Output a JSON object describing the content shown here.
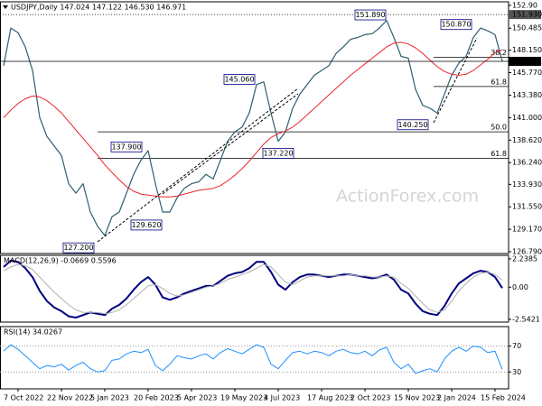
{
  "chart_data": [
    {
      "type": "line",
      "title": "USDJPY,Daily  147.024 147.122 146.530 146.971",
      "watermark": "ActionForex.com",
      "categories": [
        null,
        null,
        "7 Oct 2022",
        null,
        null,
        null,
        null,
        null,
        "22 Nov 2022",
        null,
        null,
        null,
        null,
        null,
        "5 Jan 2023",
        null,
        null,
        null,
        null,
        null,
        "20 Feb 2023",
        null,
        null,
        null,
        null,
        null,
        "5 Apr 2023",
        null,
        null,
        null,
        null,
        null,
        "19 May 2023",
        null,
        null,
        null,
        null,
        null,
        "4 Jul 2023",
        null,
        null,
        null,
        null,
        null,
        "17 Aug 2023",
        null,
        null,
        null,
        null,
        null,
        "2 Oct 2023",
        null,
        null,
        null,
        null,
        null,
        "15 Nov 2023",
        null,
        null,
        null,
        null,
        null,
        "2 Jan 2024",
        null,
        null,
        null,
        null,
        null,
        "15 Feb 2024",
        null
      ],
      "series": [
        {
          "color": "#2f5f6f",
          "values": [
            146.5,
            150.5,
            150,
            148.5,
            146,
            141,
            139,
            138,
            137,
            134,
            133,
            134,
            131,
            129.5,
            128.5,
            130.5,
            131,
            133,
            135,
            136.5,
            137.5,
            134,
            131,
            131,
            132.5,
            133.5,
            134,
            134.2,
            135,
            134.5,
            136.5,
            138.5,
            139.5,
            140,
            141.5,
            144.5,
            144.8,
            141.5,
            138.5,
            139.5,
            142,
            143.5,
            144.5,
            145.5,
            146,
            146.5,
            147.8,
            148.5,
            149.3,
            149.5,
            149.8,
            149.9,
            150.5,
            151.3,
            149.5,
            147.5,
            147.3,
            144,
            142.3,
            142,
            141.5,
            143.5,
            145.5,
            146.8,
            147.5,
            149.5,
            150.5,
            150.2,
            149.8,
            147
          ]
        },
        {
          "color": "#e8262a",
          "values": [
            141,
            141.8,
            142.5,
            143,
            143.3,
            143.2,
            142.8,
            142.2,
            141.5,
            140.6,
            139.7,
            138.8,
            137.9,
            137,
            136,
            135.2,
            134.4,
            133.7,
            133.2,
            132.9,
            132.8,
            132.7,
            132.6,
            132.6,
            132.7,
            132.9,
            133.1,
            133.3,
            133.4,
            133.5,
            133.8,
            134.3,
            134.9,
            135.6,
            136.4,
            137.3,
            138.2,
            138.9,
            139.3,
            139.6,
            140,
            140.6,
            141.3,
            142,
            142.7,
            143.4,
            144.1,
            144.8,
            145.5,
            146.1,
            146.7,
            147.3,
            147.9,
            148.5,
            148.9,
            149,
            148.8,
            148.4,
            147.8,
            147.1,
            146.4,
            145.9,
            145.6,
            145.5,
            145.6,
            146,
            146.6,
            147.2,
            147.9,
            148.2
          ]
        }
      ],
      "ylim": [
        126.6,
        153.28
      ],
      "yticks": [
        {
          "value": 152.9,
          "label": "152.90"
        },
        150.485,
        {
          "value": 148.15,
          "label": "148.150"
        },
        {
          "value": 145.77,
          "label": "145.770"
        },
        {
          "value": 143.38,
          "label": "143.380"
        },
        {
          "value": 141,
          "label": "141.000"
        },
        {
          "value": 138.62,
          "label": "138.620"
        },
        {
          "value": 136.24,
          "label": "136.240"
        },
        {
          "value": 133.93,
          "label": "133.930"
        },
        {
          "value": 131.55,
          "label": "131.550"
        },
        {
          "value": 129.17,
          "label": "129.170"
        },
        {
          "value": 126.79,
          "label": "126.790"
        }
      ],
      "price_markers": [
        {
          "value": 151.93,
          "label": "151.930"
        },
        {
          "value": 146.971,
          "label": "146.971"
        }
      ],
      "annotations": [
        {
          "value": 127.2,
          "label": "127.200"
        },
        {
          "value": 137.9,
          "label": "137.900"
        },
        {
          "value": 129.62,
          "label": "129.620"
        },
        {
          "value": 145.06,
          "label": "145.060"
        },
        {
          "value": 137.22,
          "label": "137.220"
        },
        {
          "value": 151.89,
          "label": "151.890"
        },
        {
          "value": 140.25,
          "label": "140.250"
        },
        {
          "value": 150.87,
          "label": "150.870"
        }
      ],
      "levels": [
        {
          "name": "38.2",
          "price": 147.4
        },
        {
          "name": "61.8",
          "price": 144.3
        },
        {
          "name": "50.0",
          "price": 139.5
        },
        {
          "name": "61.8",
          "price": 136.7
        }
      ]
    },
    {
      "type": "line",
      "title": "MACD(12,26,9) -0.0669 0.5596",
      "series": [
        {
          "color": "#00007f",
          "values": [
            1.6,
            2.1,
            2.0,
            1.5,
            0.8,
            -0.3,
            -1.1,
            -1.6,
            -1.9,
            -2.3,
            -2.4,
            -2.2,
            -2.0,
            -2.1,
            -2.2,
            -1.7,
            -1.4,
            -0.9,
            -0.2,
            0.4,
            0.8,
            0.2,
            -0.8,
            -1.0,
            -0.8,
            -0.5,
            -0.3,
            -0.1,
            0.1,
            0.1,
            0.5,
            0.9,
            1.1,
            1.2,
            1.5,
            2.0,
            2.0,
            1.2,
            0.2,
            -0.2,
            0.4,
            0.8,
            1.0,
            1.0,
            0.9,
            0.8,
            0.9,
            1.0,
            1.0,
            0.9,
            0.8,
            0.7,
            0.8,
            1.0,
            0.6,
            -0.2,
            -0.5,
            -1.3,
            -1.9,
            -2.1,
            -2.2,
            -1.5,
            -0.5,
            0.3,
            0.7,
            1.1,
            1.3,
            1.2,
            0.8,
            -0.07
          ]
        },
        {
          "color": "#b0b0b0",
          "values": [
            1.3,
            1.6,
            1.8,
            1.7,
            1.4,
            0.8,
            0.2,
            -0.4,
            -0.9,
            -1.4,
            -1.8,
            -2.0,
            -2.0,
            -2.0,
            -2.1,
            -2.0,
            -1.8,
            -1.4,
            -0.9,
            -0.4,
            0.1,
            0.2,
            -0.1,
            -0.5,
            -0.7,
            -0.6,
            -0.4,
            -0.2,
            0,
            0.1,
            0.3,
            0.6,
            0.8,
            1.0,
            1.2,
            1.5,
            1.8,
            1.6,
            1.0,
            0.4,
            0.2,
            0.5,
            0.8,
            0.9,
            0.9,
            0.9,
            0.9,
            0.9,
            1.0,
            0.9,
            0.9,
            0.8,
            0.8,
            0.9,
            0.8,
            0.3,
            -0.1,
            -0.7,
            -1.3,
            -1.8,
            -2.0,
            -1.8,
            -1.1,
            -0.3,
            0.3,
            0.8,
            1.1,
            1.2,
            1.0,
            0.56
          ]
        }
      ],
      "ylim": [
        -2.76,
        2.52
      ],
      "yticks": [
        2.2385,
        {
          "value": 0,
          "label": "0.00"
        },
        -2.5421
      ]
    },
    {
      "type": "line",
      "title": "RSI(14) 34.0267",
      "series": [
        {
          "color": "#1e90ff",
          "values": [
            62,
            72,
            65,
            55,
            45,
            35,
            40,
            38,
            42,
            33,
            40,
            45,
            35,
            30,
            32,
            48,
            50,
            58,
            62,
            60,
            65,
            40,
            32,
            42,
            55,
            52,
            50,
            55,
            58,
            50,
            60,
            66,
            62,
            58,
            65,
            72,
            68,
            42,
            35,
            48,
            60,
            62,
            58,
            62,
            60,
            55,
            62,
            65,
            60,
            58,
            62,
            55,
            64,
            68,
            45,
            35,
            42,
            28,
            32,
            35,
            30,
            50,
            62,
            68,
            62,
            70,
            68,
            60,
            62,
            34
          ]
        }
      ],
      "ylim": [
        4,
        100
      ],
      "yticks": [
        70,
        30
      ],
      "grid": true
    }
  ]
}
